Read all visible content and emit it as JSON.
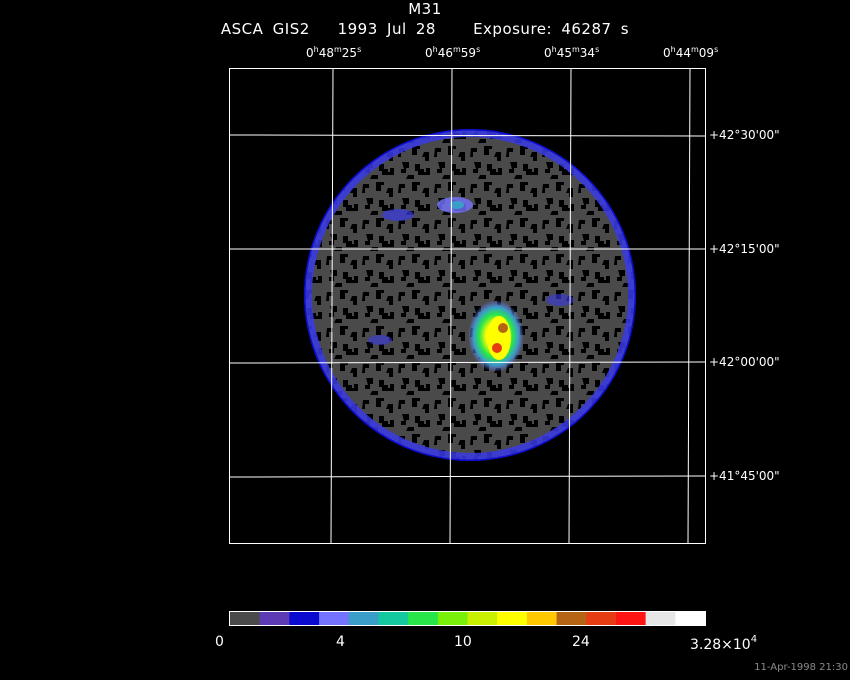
{
  "header": {
    "object": "M31",
    "instrument": "ASCA GIS2",
    "date": "1993 Jul 28",
    "exposure": "Exposure: 46287 s"
  },
  "ra_labels": [
    {
      "h": "0",
      "m": "48",
      "s": "25"
    },
    {
      "h": "0",
      "m": "46",
      "s": "59"
    },
    {
      "h": "0",
      "m": "45",
      "s": "34"
    },
    {
      "h": "0",
      "m": "44",
      "s": "09"
    }
  ],
  "dec_labels": [
    "+42°30'00\"",
    "+42°15'00\"",
    "+42°00'00\"",
    "+41°45'00\""
  ],
  "colorbar": {
    "colors": [
      "#4a4a4a",
      "#5c3bb5",
      "#0b0bd0",
      "#7373ff",
      "#3a9ec8",
      "#14c8a0",
      "#28e64a",
      "#78f00a",
      "#c8f000",
      "#ffff00",
      "#ffc800",
      "#b46414",
      "#e63c14",
      "#ff1414",
      "#e6e6e6",
      "#ffffff"
    ],
    "tick_labels": [
      "0",
      "4",
      "10",
      "24",
      "3.28×10"
    ],
    "last_exponent": "4"
  },
  "footer": "11-Apr-1998 21:30"
}
